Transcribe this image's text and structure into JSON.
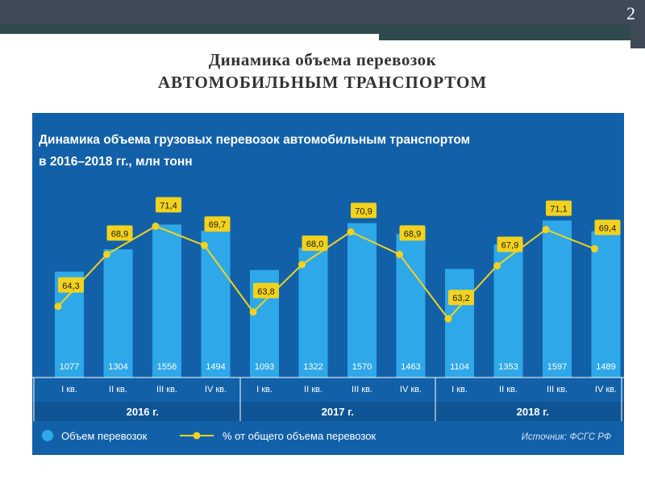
{
  "slide": {
    "number": "2",
    "title_line1": "Динамика объема перевозок",
    "title_line2": "АВТОМОБИЛЬНЫМ ТРАНСПОРТОМ"
  },
  "colors": {
    "panel": "#1261a8",
    "bar": "#2ea8e8",
    "line": "#f2d21e",
    "label_bg": "#f2d21e",
    "text": "#ffffff"
  },
  "chart_data": {
    "type": "bar",
    "title_line1": "Динамика объема грузовых перевозок автомобильным транспортом",
    "title_line2": "в 2016–2018 гг., млн тонн",
    "categories": [
      "I кв.",
      "II кв.",
      "III кв.",
      "IV кв.",
      "I кв.",
      "II кв.",
      "III кв.",
      "IV кв.",
      "I кв.",
      "II кв.",
      "III кв.",
      "IV кв."
    ],
    "groups": [
      "2016 г.",
      "2017 г.",
      "2018 г."
    ],
    "series": [
      {
        "name": "Объем перевозок",
        "type": "bar",
        "values": [
          1077,
          1304,
          1556,
          1494,
          1093,
          1322,
          1570,
          1463,
          1104,
          1353,
          1597,
          1489
        ]
      },
      {
        "name": "% от общего объема перевозок",
        "type": "line",
        "values": [
          64.3,
          68.9,
          71.4,
          69.7,
          63.8,
          68.0,
          70.9,
          68.9,
          63.2,
          67.9,
          71.1,
          69.4
        ]
      }
    ],
    "value_labels": [
      "1077",
      "1304",
      "1556",
      "1494",
      "1093",
      "1322",
      "1570",
      "1463",
      "1104",
      "1353",
      "1597",
      "1489"
    ],
    "percent_labels": [
      "64,3",
      "68,9",
      "71,4",
      "69,7",
      "63,8",
      "68,0",
      "70,9",
      "68,9",
      "63,2",
      "67,9",
      "71,1",
      "69,4"
    ],
    "legend_position": "bottom-left",
    "source": "Источник: ФСГС РФ"
  }
}
